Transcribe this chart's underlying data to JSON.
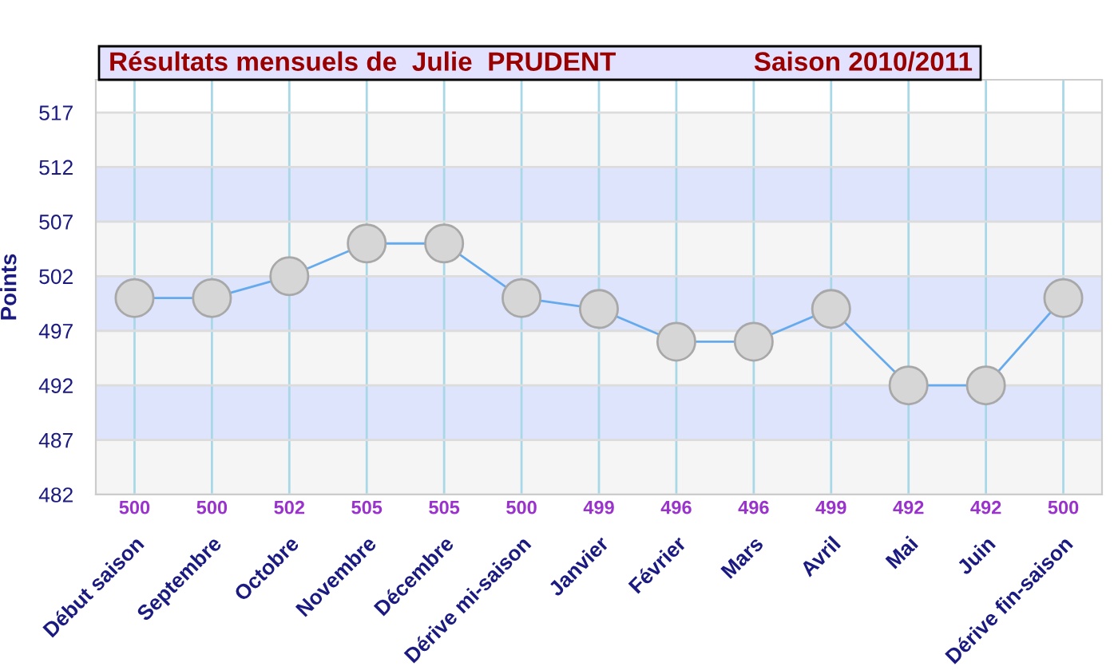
{
  "chart_data": {
    "type": "line",
    "title": "Résultats mensuels de  Julie  PRUDENT",
    "subtitle": "Saison 2010/2011",
    "ylabel": "Points",
    "categories": [
      "Début saison",
      "Septembre",
      "Octobre",
      "Novembre",
      "Décembre",
      "Dérive mi-saison",
      "Janvier",
      "Février",
      "Mars",
      "Avril",
      "Mai",
      "Juin",
      "Dérive fin-saison"
    ],
    "series": [
      {
        "color": "#66aaee",
        "values": [
          500,
          500,
          502,
          505,
          505,
          500,
          499,
          496,
          496,
          499,
          492,
          492,
          500
        ]
      }
    ],
    "ylim": [
      482,
      520
    ],
    "yticks": [
      482,
      487,
      492,
      497,
      502,
      507,
      512,
      517
    ],
    "grid": true,
    "marker": "circle",
    "line_style": "solid",
    "data_labels": true,
    "bands": [
      {
        "axis": "y",
        "from": 482,
        "to": 487,
        "color": "#f5f5f5"
      },
      {
        "axis": "y",
        "from": 487,
        "to": 492,
        "color": "#dde4fb"
      },
      {
        "axis": "y",
        "from": 492,
        "to": 497,
        "color": "#f5f5f5"
      },
      {
        "axis": "y",
        "from": 497,
        "to": 502,
        "color": "#dde4fb"
      },
      {
        "axis": "y",
        "from": 502,
        "to": 507,
        "color": "#f5f5f5"
      },
      {
        "axis": "y",
        "from": 507,
        "to": 512,
        "color": "#dde4fb"
      },
      {
        "axis": "y",
        "from": 512,
        "to": 517,
        "color": "#f5f5f5"
      }
    ]
  }
}
